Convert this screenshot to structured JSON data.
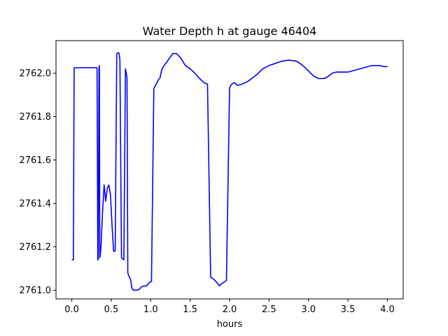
{
  "chart_data": {
    "type": "line",
    "title": "Water Depth h at gauge 46404",
    "xlabel": "hours",
    "ylabel": "",
    "xlim": [
      -0.2,
      4.2
    ],
    "ylim": [
      2760.96,
      2762.15
    ],
    "xticks": [
      0.0,
      0.5,
      1.0,
      1.5,
      2.0,
      2.5,
      3.0,
      3.5,
      4.0
    ],
    "xtick_labels": [
      "0.0",
      "0.5",
      "1.0",
      "1.5",
      "2.0",
      "2.5",
      "3.0",
      "3.5",
      "4.0"
    ],
    "yticks": [
      2761.0,
      2761.2,
      2761.4,
      2761.6,
      2761.8,
      2762.0
    ],
    "ytick_labels": [
      "2761.0",
      "2761.2",
      "2761.4",
      "2761.6",
      "2761.8",
      "2762.0"
    ],
    "grid": false,
    "series": [
      {
        "color": "#0000ff",
        "x": [
          0.0,
          0.02,
          0.03,
          0.1,
          0.2,
          0.32,
          0.33,
          0.335,
          0.345,
          0.35,
          0.355,
          0.36,
          0.37,
          0.39,
          0.41,
          0.43,
          0.45,
          0.47,
          0.49,
          0.51,
          0.53,
          0.55,
          0.57,
          0.59,
          0.6,
          0.61,
          0.63,
          0.66,
          0.68,
          0.69,
          0.7,
          0.71,
          0.72,
          0.73,
          0.74,
          0.75,
          0.76,
          0.78,
          0.82,
          0.86,
          0.88,
          0.92,
          0.95,
          0.98,
          1.01,
          1.04,
          1.07,
          1.1,
          1.12,
          1.13,
          1.14,
          1.16,
          1.2,
          1.24,
          1.28,
          1.33,
          1.38,
          1.44,
          1.5,
          1.56,
          1.62,
          1.68,
          1.72,
          1.76,
          1.8,
          1.84,
          1.86,
          1.87,
          1.88,
          1.92,
          1.96,
          2.0,
          2.03,
          2.05,
          2.07,
          2.08,
          2.09,
          2.12,
          2.16,
          2.22,
          2.28,
          2.35,
          2.42,
          2.5,
          2.58,
          2.66,
          2.75,
          2.85,
          2.93,
          3.0,
          3.07,
          3.13,
          3.2,
          3.25,
          3.3,
          3.35,
          3.4,
          3.5,
          3.6,
          3.7,
          3.8,
          3.9,
          3.96,
          4.0
        ],
        "y": [
          2761.14,
          2761.14,
          2762.025,
          2762.025,
          2762.025,
          2762.025,
          2761.14,
          2761.14,
          2762.02,
          2762.035,
          2761.15,
          2761.16,
          2761.2,
          2761.36,
          2761.485,
          2761.41,
          2761.47,
          2761.485,
          2761.44,
          2761.3,
          2761.18,
          2761.18,
          2762.09,
          2762.095,
          2762.09,
          2762.06,
          2761.15,
          2761.14,
          2762.02,
          2762.0,
          2761.98,
          2761.08,
          2761.07,
          2761.06,
          2761.055,
          2761.04,
          2761.01,
          2761.0,
          2761.0,
          2761.005,
          2761.015,
          2761.02,
          2761.02,
          2761.035,
          2761.04,
          2761.93,
          2761.95,
          2761.97,
          2761.98,
          2762.0,
          2762.015,
          2762.03,
          2762.05,
          2762.07,
          2762.09,
          2762.09,
          2762.07,
          2762.035,
          2762.02,
          2762.0,
          2761.975,
          2761.955,
          2761.95,
          2761.06,
          2761.05,
          2761.035,
          2761.025,
          2761.02,
          2761.025,
          2761.035,
          2761.045,
          2761.935,
          2761.95,
          2761.955,
          2761.955,
          2761.95,
          2761.945,
          2761.945,
          2761.95,
          2761.96,
          2761.975,
          2761.995,
          2762.02,
          2762.035,
          2762.045,
          2762.055,
          2762.06,
          2762.055,
          2762.035,
          2762.01,
          2761.985,
          2761.975,
          2761.975,
          2761.985,
          2762.0,
          2762.005,
          2762.005,
          2762.005,
          2762.015,
          2762.025,
          2762.035,
          2762.035,
          2762.03,
          2762.03
        ]
      }
    ]
  }
}
